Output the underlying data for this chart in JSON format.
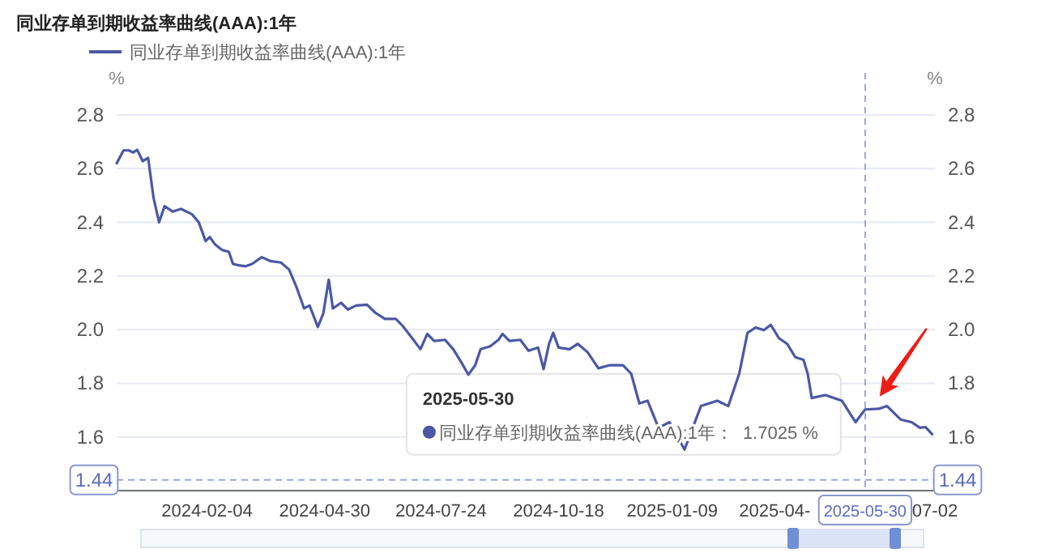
{
  "chart_data": {
    "type": "line",
    "title": "同业存单到期收益率曲线(AAA):1年",
    "ylabel": "%",
    "y2label": "%",
    "xlim": [
      "2023-11-30",
      "2025-07-20"
    ],
    "xticks": [
      {
        "value": "2024-02-04",
        "label": "2024-02-04"
      },
      {
        "value": "2024-04-30",
        "label": "2024-04-30"
      },
      {
        "value": "2024-07-24",
        "label": "2024-07-24"
      },
      {
        "value": "2024-10-18",
        "label": "2024-10-18"
      },
      {
        "value": "2025-01-09",
        "label": "2025-01-09"
      },
      {
        "value": "2025-03-25",
        "label": "2025-04-"
      },
      {
        "value": "2025-07-20",
        "label": "07-02"
      }
    ],
    "ylim": [
      1.4,
      2.8
    ],
    "yticks": [
      1.6,
      1.8,
      {
        "value": 2,
        "label": "2.0"
      },
      2.2,
      2.4,
      2.6,
      2.8
    ],
    "y2lim": [
      1.4,
      2.8
    ],
    "y2ticks": [
      1.6,
      1.8,
      {
        "value": 2,
        "label": "2.0"
      },
      2.2,
      2.4,
      2.6,
      2.8
    ],
    "grid": "y",
    "legend": "top left",
    "marker": "none",
    "line_style": "solid",
    "series": [
      {
        "name": "同业存单到期收益率曲线(AAA):1年",
        "color": "#4a58a6",
        "x": [
          "2023-11-30",
          "2023-12-05",
          "2023-12-09",
          "2023-12-12",
          "2023-12-15",
          "2023-12-19",
          "2023-12-23",
          "2023-12-27",
          "2023-12-31",
          "2024-01-04",
          "2024-01-10",
          "2024-01-16",
          "2024-01-24",
          "2024-01-29",
          "2024-02-03",
          "2024-02-06",
          "2024-02-10",
          "2024-02-15",
          "2024-02-20",
          "2024-02-23",
          "2024-02-27",
          "2024-03-03",
          "2024-03-08",
          "2024-03-15",
          "2024-03-21",
          "2024-03-29",
          "2024-04-04",
          "2024-04-09",
          "2024-04-15",
          "2024-04-19",
          "2024-04-25",
          "2024-04-29",
          "2024-05-03",
          "2024-05-06",
          "2024-05-12",
          "2024-05-17",
          "2024-05-23",
          "2024-05-31",
          "2024-06-06",
          "2024-06-13",
          "2024-06-21",
          "2024-06-26",
          "2024-07-03",
          "2024-07-09",
          "2024-07-14",
          "2024-07-19",
          "2024-07-27",
          "2024-08-02",
          "2024-08-08",
          "2024-08-13",
          "2024-08-18",
          "2024-08-22",
          "2024-08-29",
          "2024-09-04",
          "2024-09-07",
          "2024-09-12",
          "2024-09-20",
          "2024-09-26",
          "2024-10-03",
          "2024-10-07",
          "2024-10-11",
          "2024-10-14",
          "2024-10-18",
          "2024-10-26",
          "2024-11-01",
          "2024-11-08",
          "2024-11-16",
          "2024-11-24",
          "2024-12-04",
          "2024-12-10",
          "2024-12-16",
          "2024-12-22",
          "2024-12-30",
          "2025-01-07",
          "2025-01-18",
          "2025-01-30",
          "2025-02-11",
          "2025-02-19",
          "2025-02-27",
          "2025-03-05",
          "2025-03-11",
          "2025-03-17",
          "2025-03-22",
          "2025-03-28",
          "2025-04-03",
          "2025-04-09",
          "2025-04-15",
          "2025-04-18",
          "2025-04-21",
          "2025-05-01",
          "2025-05-13",
          "2025-05-23",
          "2025-05-30",
          "2025-06-09",
          "2025-06-15",
          "2025-06-21",
          "2025-06-25",
          "2025-07-03",
          "2025-07-09",
          "2025-07-13",
          "2025-07-18"
        ],
        "values": [
          2.62,
          2.668,
          2.668,
          2.66,
          2.67,
          2.628,
          2.64,
          2.49,
          2.4,
          2.46,
          2.44,
          2.45,
          2.43,
          2.4,
          2.33,
          2.345,
          2.317,
          2.297,
          2.29,
          2.245,
          2.24,
          2.236,
          2.245,
          2.27,
          2.256,
          2.25,
          2.224,
          2.164,
          2.079,
          2.09,
          2.01,
          2.06,
          2.186,
          2.079,
          2.1,
          2.075,
          2.09,
          2.093,
          2.063,
          2.04,
          2.04,
          2.014,
          1.968,
          1.927,
          1.984,
          1.958,
          1.962,
          1.927,
          1.877,
          1.832,
          1.867,
          1.927,
          1.938,
          1.962,
          1.984,
          1.958,
          1.962,
          1.921,
          1.933,
          1.853,
          1.947,
          1.988,
          1.933,
          1.927,
          1.947,
          1.917,
          1.856,
          1.867,
          1.867,
          1.836,
          1.725,
          1.735,
          1.634,
          1.655,
          1.553,
          1.715,
          1.735,
          1.715,
          1.836,
          1.988,
          2.008,
          1.998,
          2.018,
          1.968,
          1.947,
          1.897,
          1.887,
          1.836,
          1.745,
          1.756,
          1.735,
          1.655,
          1.7025,
          1.705,
          1.715,
          1.685,
          1.665,
          1.655,
          1.634,
          1.637,
          1.61
        ]
      }
    ],
    "ref_lines": [
      {
        "axis": "y",
        "value": 1.44,
        "label": "1.44",
        "color": "#9aa6e0",
        "line_style": "dashed"
      },
      {
        "axis": "x",
        "value": "2025-05-30",
        "label": "2025-05-30",
        "color": "#9aa6e0",
        "line_style": "dashed"
      }
    ],
    "annotations": [
      "2025-05-30",
      "同业存单到期收益率曲线(AAA):1年：",
      "1.7025 %"
    ]
  }
}
